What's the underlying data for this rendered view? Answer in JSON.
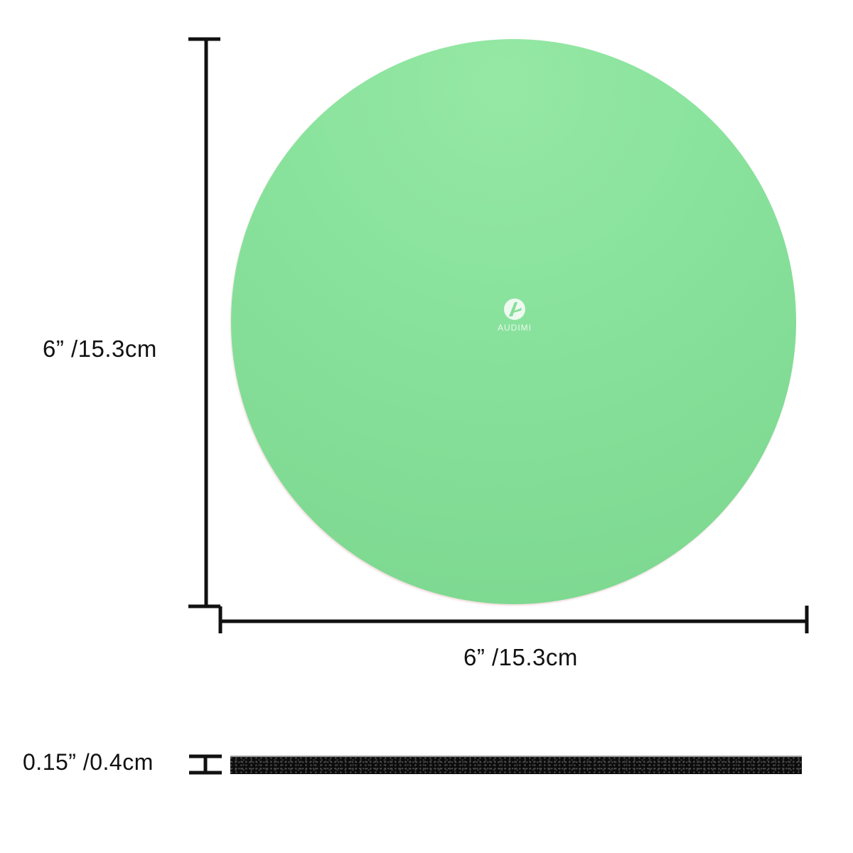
{
  "dimensions": {
    "height_label": "6” /15.3cm",
    "width_label": "6” /15.3cm",
    "thickness_label": "0.15” /0.4cm"
  },
  "product": {
    "brand_logo_text": "AUDIMI",
    "color": "#85de98",
    "edge_color": "#0c0c0c"
  },
  "icons": {
    "logo": "audimi-logo-icon"
  }
}
